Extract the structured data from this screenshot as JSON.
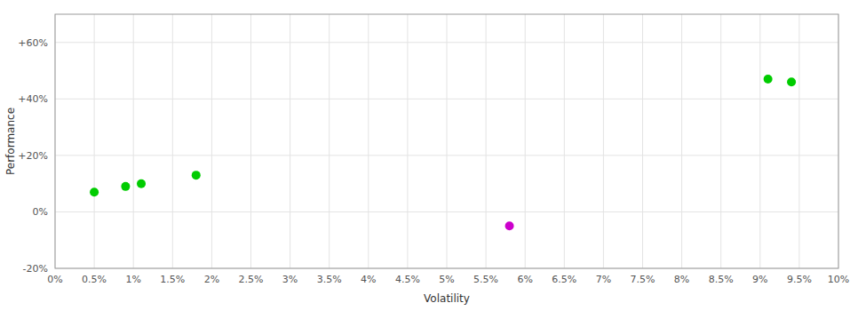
{
  "chart_data": {
    "type": "scatter",
    "xlabel": "Volatility",
    "ylabel": "Performance",
    "xlim": [
      0,
      0.1
    ],
    "ylim": [
      -0.2,
      0.7
    ],
    "xticks": [
      {
        "value": 0.0,
        "label": "0%"
      },
      {
        "value": 0.005,
        "label": "0.5%"
      },
      {
        "value": 0.01,
        "label": "1%"
      },
      {
        "value": 0.015,
        "label": "1.5%"
      },
      {
        "value": 0.02,
        "label": "2%"
      },
      {
        "value": 0.025,
        "label": "2.5%"
      },
      {
        "value": 0.03,
        "label": "3%"
      },
      {
        "value": 0.035,
        "label": "3.5%"
      },
      {
        "value": 0.04,
        "label": "4%"
      },
      {
        "value": 0.045,
        "label": "4.5%"
      },
      {
        "value": 0.05,
        "label": "5%"
      },
      {
        "value": 0.055,
        "label": "5.5%"
      },
      {
        "value": 0.06,
        "label": "6%"
      },
      {
        "value": 0.065,
        "label": "6.5%"
      },
      {
        "value": 0.07,
        "label": "7%"
      },
      {
        "value": 0.075,
        "label": "7.5%"
      },
      {
        "value": 0.08,
        "label": "8%"
      },
      {
        "value": 0.085,
        "label": "8.5%"
      },
      {
        "value": 0.09,
        "label": "9%"
      },
      {
        "value": 0.095,
        "label": "9.5%"
      },
      {
        "value": 0.1,
        "label": "10%"
      }
    ],
    "yticks": [
      {
        "value": -0.2,
        "label": "-20%"
      },
      {
        "value": 0.0,
        "label": "0%"
      },
      {
        "value": 0.2,
        "label": "+20%"
      },
      {
        "value": 0.4,
        "label": "+40%"
      },
      {
        "value": 0.6,
        "label": "+60%"
      }
    ],
    "grid": true,
    "series": [
      {
        "color": "#00cc00",
        "x": [
          0.005,
          0.009,
          0.011,
          0.018,
          0.091,
          0.094
        ],
        "values": [
          0.07,
          0.09,
          0.1,
          0.13,
          0.47,
          0.46
        ]
      },
      {
        "color": "#cc00cc",
        "x": [
          0.058
        ],
        "values": [
          -0.05
        ]
      }
    ]
  }
}
